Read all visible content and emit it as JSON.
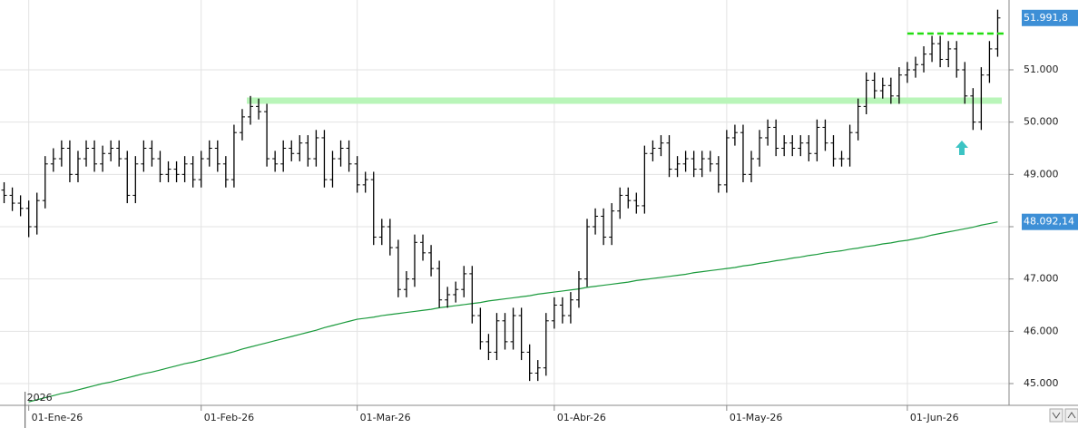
{
  "chart_data": {
    "type": "ohlc",
    "categories": [
      null,
      null,
      null,
      "01-Ene-26",
      null,
      null,
      null,
      null,
      null,
      null,
      null,
      null,
      null,
      null,
      null,
      null,
      null,
      null,
      null,
      null,
      null,
      null,
      null,
      null,
      "01-Feb-26",
      null,
      null,
      null,
      null,
      null,
      null,
      null,
      null,
      null,
      null,
      null,
      null,
      null,
      null,
      null,
      null,
      null,
      null,
      "01-Mar-26",
      null,
      null,
      null,
      null,
      null,
      null,
      null,
      null,
      null,
      null,
      null,
      null,
      null,
      null,
      null,
      null,
      null,
      null,
      null,
      null,
      null,
      null,
      null,
      "01-Abr-26",
      null,
      null,
      null,
      null,
      null,
      null,
      null,
      null,
      null,
      null,
      null,
      null,
      null,
      null,
      null,
      null,
      null,
      null,
      null,
      null,
      "01-May-26",
      null,
      null,
      null,
      null,
      null,
      null,
      null,
      null,
      null,
      null,
      null,
      null,
      null,
      null,
      null,
      null,
      null,
      null,
      null,
      null,
      null,
      "01-Jun-26",
      null,
      null,
      null,
      null,
      null,
      null,
      null,
      null,
      null,
      null,
      null
    ],
    "open": [
      48700,
      48600,
      48450,
      48350,
      48000,
      48500,
      49200,
      49300,
      49500,
      49000,
      49300,
      49500,
      49200,
      49400,
      49500,
      49300,
      48600,
      49200,
      49500,
      49300,
      49000,
      49100,
      49000,
      49200,
      48900,
      49300,
      49500,
      49200,
      48900,
      49800,
      50100,
      50300,
      50200,
      49300,
      49200,
      49500,
      49400,
      49600,
      49300,
      49700,
      48900,
      49300,
      49500,
      49200,
      48800,
      48900,
      47800,
      48000,
      47600,
      46800,
      47000,
      47700,
      47500,
      47200,
      46600,
      46700,
      46800,
      47100,
      46300,
      45800,
      45600,
      46200,
      45800,
      46300,
      45600,
      45200,
      45300,
      46200,
      46500,
      46300,
      46600,
      47000,
      48000,
      48200,
      47800,
      48300,
      48600,
      48500,
      48400,
      49400,
      49500,
      49600,
      49100,
      49200,
      49300,
      49100,
      49300,
      49200,
      48800,
      49700,
      49800,
      49000,
      49300,
      49700,
      49900,
      49500,
      49600,
      49500,
      49600,
      49400,
      49900,
      49600,
      49300,
      49300,
      49800,
      50300,
      50800,
      50600,
      50700,
      50500,
      50900,
      51000,
      51100,
      51300,
      51500,
      51200,
      51400,
      51000,
      50500,
      50000,
      50900,
      51400
    ],
    "high": [
      48850,
      48750,
      48600,
      48500,
      48650,
      49350,
      49500,
      49650,
      49650,
      49450,
      49650,
      49650,
      49550,
      49650,
      49650,
      49450,
      49350,
      49650,
      49650,
      49450,
      49250,
      49250,
      49350,
      49350,
      49450,
      49650,
      49650,
      49350,
      49950,
      50250,
      50500,
      50450,
      50350,
      49450,
      49650,
      49650,
      49750,
      49750,
      49850,
      49850,
      49450,
      49650,
      49650,
      49350,
      49050,
      49050,
      48150,
      48150,
      47750,
      47150,
      47850,
      47850,
      47650,
      47350,
      46850,
      46950,
      47250,
      47250,
      46450,
      45950,
      46350,
      46350,
      46450,
      46450,
      45750,
      45450,
      46350,
      46650,
      46650,
      46750,
      47150,
      48150,
      48350,
      48350,
      48450,
      48750,
      48750,
      48650,
      49550,
      49650,
      49750,
      49750,
      49350,
      49450,
      49450,
      49450,
      49450,
      49350,
      49850,
      49950,
      49950,
      49450,
      49850,
      50050,
      50050,
      49750,
      49750,
      49750,
      49750,
      50050,
      50050,
      49750,
      49450,
      49950,
      50450,
      50950,
      50950,
      50850,
      50850,
      51050,
      51150,
      51250,
      51450,
      51650,
      51650,
      51550,
      51550,
      51150,
      50650,
      51050,
      51550,
      52150
    ],
    "low": [
      48450,
      48300,
      48200,
      47800,
      47850,
      48350,
      49050,
      49150,
      48850,
      48850,
      49150,
      49050,
      49050,
      49250,
      49150,
      48450,
      48450,
      49050,
      49150,
      48850,
      48850,
      48850,
      48850,
      48750,
      48750,
      49150,
      49050,
      48750,
      48750,
      49650,
      49950,
      50050,
      49150,
      49050,
      49050,
      49250,
      49250,
      49150,
      49150,
      48750,
      48750,
      49150,
      49050,
      48650,
      48650,
      47650,
      47650,
      47450,
      46650,
      46650,
      46850,
      47350,
      47050,
      46450,
      46450,
      46550,
      46650,
      46150,
      45650,
      45450,
      45450,
      45650,
      45650,
      45450,
      45050,
      45050,
      45150,
      46050,
      46150,
      46150,
      46450,
      46850,
      47850,
      47650,
      47650,
      48150,
      48350,
      48250,
      48250,
      49250,
      49350,
      48950,
      48950,
      49050,
      48950,
      48950,
      49050,
      48650,
      48650,
      49550,
      48850,
      48850,
      49150,
      49550,
      49350,
      49350,
      49350,
      49350,
      49250,
      49250,
      49450,
      49150,
      49150,
      49150,
      49650,
      50150,
      50450,
      50450,
      50350,
      50350,
      50750,
      50850,
      50950,
      51150,
      51050,
      51050,
      50850,
      50350,
      49850,
      49850,
      50750,
      51250
    ],
    "close": [
      48600,
      48450,
      48350,
      48000,
      48500,
      49200,
      49300,
      49500,
      49000,
      49300,
      49500,
      49200,
      49400,
      49500,
      49300,
      48600,
      49200,
      49500,
      49300,
      49000,
      49100,
      49000,
      49200,
      48900,
      49300,
      49500,
      49200,
      48900,
      49800,
      50100,
      50300,
      50200,
      49300,
      49200,
      49500,
      49400,
      49600,
      49300,
      49700,
      48900,
      49300,
      49500,
      49200,
      48800,
      48900,
      47800,
      48000,
      47600,
      46800,
      47000,
      47700,
      47500,
      47200,
      46600,
      46700,
      46800,
      47100,
      46300,
      45800,
      45600,
      46200,
      45800,
      46300,
      45600,
      45200,
      45300,
      46200,
      46500,
      46300,
      46600,
      47000,
      48000,
      48200,
      47800,
      48300,
      48600,
      48500,
      48400,
      49400,
      49500,
      49600,
      49100,
      49200,
      49300,
      49100,
      49300,
      49200,
      48800,
      49700,
      49800,
      49000,
      49300,
      49700,
      49900,
      49500,
      49600,
      49500,
      49600,
      49400,
      49900,
      49600,
      49300,
      49300,
      49800,
      50300,
      50800,
      50600,
      50700,
      50500,
      50900,
      51000,
      51100,
      51300,
      51500,
      51200,
      51400,
      51000,
      50500,
      50000,
      50900,
      51400,
      51991.8
    ],
    "color": "#000000",
    "moving_average": {
      "color": "#1a9a3c",
      "values": [
        null,
        null,
        null,
        44650,
        44690,
        44730,
        44770,
        44810,
        44840,
        44880,
        44920,
        44960,
        45000,
        45030,
        45070,
        45110,
        45150,
        45190,
        45220,
        45260,
        45300,
        45340,
        45380,
        45410,
        45450,
        45490,
        45530,
        45570,
        45610,
        45660,
        45700,
        45740,
        45780,
        45820,
        45860,
        45900,
        45940,
        45980,
        46020,
        46070,
        46110,
        46150,
        46190,
        46230,
        46250,
        46270,
        46300,
        46320,
        46340,
        46360,
        46380,
        46400,
        46420,
        46450,
        46470,
        46490,
        46510,
        46530,
        46550,
        46580,
        46600,
        46620,
        46640,
        46660,
        46680,
        46710,
        46730,
        46750,
        46770,
        46790,
        46810,
        46840,
        46860,
        46880,
        46900,
        46920,
        46940,
        46970,
        46990,
        47010,
        47030,
        47050,
        47070,
        47090,
        47120,
        47140,
        47160,
        47180,
        47200,
        47220,
        47250,
        47270,
        47300,
        47320,
        47350,
        47370,
        47400,
        47420,
        47450,
        47470,
        47500,
        47520,
        47540,
        47570,
        47590,
        47620,
        47640,
        47670,
        47690,
        47720,
        47740,
        47770,
        47800,
        47840,
        47870,
        47900,
        47930,
        47960,
        47990,
        48030,
        48060,
        48092.14
      ]
    },
    "price_flag": {
      "value": 51991.8,
      "label": "51.991,8",
      "color": "#3d8fd6"
    },
    "ma_flag": {
      "value": 48092.14,
      "label": "48.092,14",
      "color": "#3d8fd6"
    },
    "levels": [
      {
        "value": 50410,
        "color": "#b9f5b9",
        "style": "band"
      },
      {
        "value": 51694,
        "color": "#22dd11",
        "style": "dashed"
      }
    ],
    "year_label": "2026",
    "ylim": [
      44584,
      52335
    ],
    "yticks": [
      {
        "value": 45000,
        "label": "45.000"
      },
      {
        "value": 46000,
        "label": "46.000"
      },
      {
        "value": 47000,
        "label": "47.000"
      },
      {
        "value": 48000,
        "label": "48.000"
      },
      {
        "value": 49000,
        "label": "49.000"
      },
      {
        "value": 50000,
        "label": "50.000"
      },
      {
        "value": 51000,
        "label": "51.000"
      }
    ],
    "grid": true
  }
}
